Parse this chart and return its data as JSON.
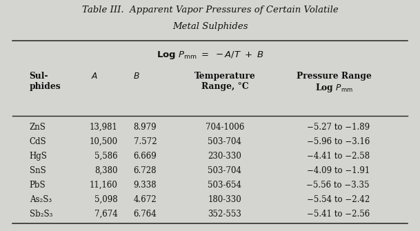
{
  "title_line1": "Table III.  Apparent Vapor Pressures of Certain Volatile",
  "title_line2": "Metal Sulphides",
  "bg_color": "#d4d4d0",
  "rows": [
    [
      "ZnS",
      "13,981",
      "8.979",
      "704-1006",
      "−5.27 to −1.89"
    ],
    [
      "CdS",
      "10,500",
      "7.572",
      "503-704",
      "−5.96 to −3.16"
    ],
    [
      "HgS",
      "5,586",
      "6.669",
      "230-330",
      "−4.41 to −2.58"
    ],
    [
      "SnS",
      "8,380",
      "6.728",
      "503-704",
      "−4.09 to −1.91"
    ],
    [
      "PbS",
      "11,160",
      "9.338",
      "503-654",
      "−5.56 to −3.35"
    ],
    [
      "As₂S₃",
      "5,098",
      "4.672",
      "180-330",
      "−5.54 to −2.42"
    ],
    [
      "Sb₂S₃",
      "7,674",
      "6.764",
      "352-553",
      "−5.41 to −2.56"
    ]
  ]
}
